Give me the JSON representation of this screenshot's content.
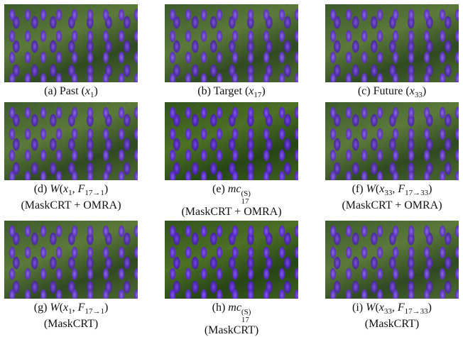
{
  "panels": [
    {
      "caption": [
        [
          {
            "text": "(a) Past ("
          },
          {
            "text": "x",
            "style": "i"
          },
          {
            "text": "1",
            "style": "sub"
          },
          {
            "text": ")"
          }
        ]
      ]
    },
    {
      "caption": [
        [
          {
            "text": "(b) Target ("
          },
          {
            "text": "x",
            "style": "i"
          },
          {
            "text": "17",
            "style": "sub"
          },
          {
            "text": ")"
          }
        ]
      ]
    },
    {
      "caption": [
        [
          {
            "text": "(c) Future ("
          },
          {
            "text": "x",
            "style": "i"
          },
          {
            "text": "33",
            "style": "sub"
          },
          {
            "text": ")"
          }
        ]
      ]
    },
    {
      "caption": [
        [
          {
            "text": "(d) "
          },
          {
            "text": "W",
            "style": "i"
          },
          {
            "text": "("
          },
          {
            "text": "x",
            "style": "i"
          },
          {
            "text": "1",
            "style": "sub"
          },
          {
            "text": ", "
          },
          {
            "text": "F",
            "style": "i"
          },
          {
            "text": "17→1",
            "style": "sub"
          },
          {
            "text": ")"
          }
        ],
        [
          {
            "text": "(MaskCRT + OMRA)"
          }
        ]
      ]
    },
    {
      "caption": [
        [
          {
            "text": "(e) "
          },
          {
            "text": "mc",
            "style": "i"
          },
          {
            "sup": "(S)",
            "sub": "17"
          }
        ],
        [
          {
            "text": "(MaskCRT + OMRA)"
          }
        ]
      ]
    },
    {
      "caption": [
        [
          {
            "text": "(f) "
          },
          {
            "text": "W",
            "style": "i"
          },
          {
            "text": "("
          },
          {
            "text": "x",
            "style": "i"
          },
          {
            "text": "33",
            "style": "sub"
          },
          {
            "text": ", "
          },
          {
            "text": "F",
            "style": "i"
          },
          {
            "text": "17→33",
            "style": "sub"
          },
          {
            "text": ")"
          }
        ],
        [
          {
            "text": "(MaskCRT + OMRA)"
          }
        ]
      ]
    },
    {
      "caption": [
        [
          {
            "text": "(g) "
          },
          {
            "text": "W",
            "style": "i"
          },
          {
            "text": "("
          },
          {
            "text": "x",
            "style": "i"
          },
          {
            "text": "1",
            "style": "sub"
          },
          {
            "text": ", "
          },
          {
            "text": "F",
            "style": "i"
          },
          {
            "text": "17→1",
            "style": "sub"
          },
          {
            "text": ")"
          }
        ],
        [
          {
            "text": "(MaskCRT)"
          }
        ]
      ]
    },
    {
      "caption": [
        [
          {
            "text": "(h) "
          },
          {
            "text": "mc",
            "style": "i"
          },
          {
            "sup": "(S)",
            "sub": "17"
          }
        ],
        [
          {
            "text": "(MaskCRT)"
          }
        ]
      ]
    },
    {
      "caption": [
        [
          {
            "text": "(i) "
          },
          {
            "text": "W",
            "style": "i"
          },
          {
            "text": "("
          },
          {
            "text": "x",
            "style": "i"
          },
          {
            "text": "33",
            "style": "sub"
          },
          {
            "text": ", "
          },
          {
            "text": "F",
            "style": "i"
          },
          {
            "text": "17→33",
            "style": "sub"
          },
          {
            "text": ")"
          }
        ],
        [
          {
            "text": "(MaskCRT)"
          }
        ]
      ]
    }
  ]
}
